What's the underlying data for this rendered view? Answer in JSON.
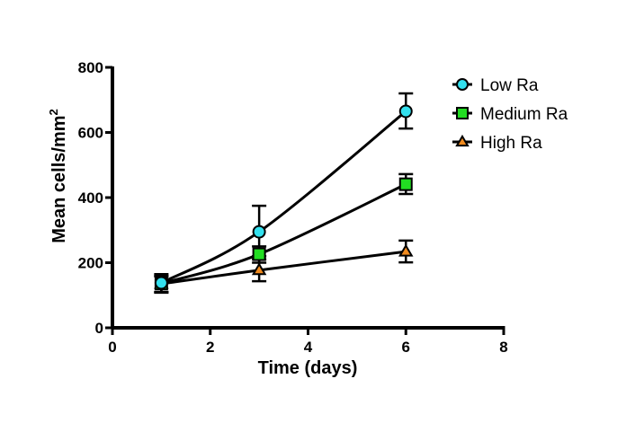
{
  "chart_data": {
    "type": "line",
    "title": "",
    "xlabel": "Time (days)",
    "ylabel": "Mean cells/mm",
    "ylabel_superscript": "2",
    "xlim": [
      0,
      8
    ],
    "ylim": [
      0,
      800
    ],
    "xticks": [
      "0",
      "2",
      "4",
      "6",
      "8"
    ],
    "yticks": [
      "0",
      "200",
      "400",
      "600",
      "800"
    ],
    "xtick_values": [
      0,
      2,
      4,
      6,
      8
    ],
    "ytick_values": [
      0,
      200,
      400,
      600,
      800
    ],
    "grid": false,
    "legend_position": "top-right",
    "x": [
      1,
      3,
      6
    ],
    "series": [
      {
        "name": "Low Ra",
        "marker": "circle",
        "color": "#33e0ee",
        "values": [
          138,
          295,
          665
        ],
        "error_low": [
          108,
          220,
          612
        ],
        "error_high": [
          165,
          375,
          720
        ]
      },
      {
        "name": "Medium Ra",
        "marker": "square",
        "color": "#22dd22",
        "values": [
          136,
          226,
          441
        ],
        "error_low": [
          110,
          200,
          411
        ],
        "error_high": [
          160,
          250,
          472
        ]
      },
      {
        "name": "High Ra",
        "marker": "triangle",
        "color": "#f08a1e",
        "values": [
          135,
          177,
          234
        ],
        "error_low": [
          110,
          143,
          201
        ],
        "error_high": [
          158,
          210,
          268
        ]
      }
    ]
  }
}
